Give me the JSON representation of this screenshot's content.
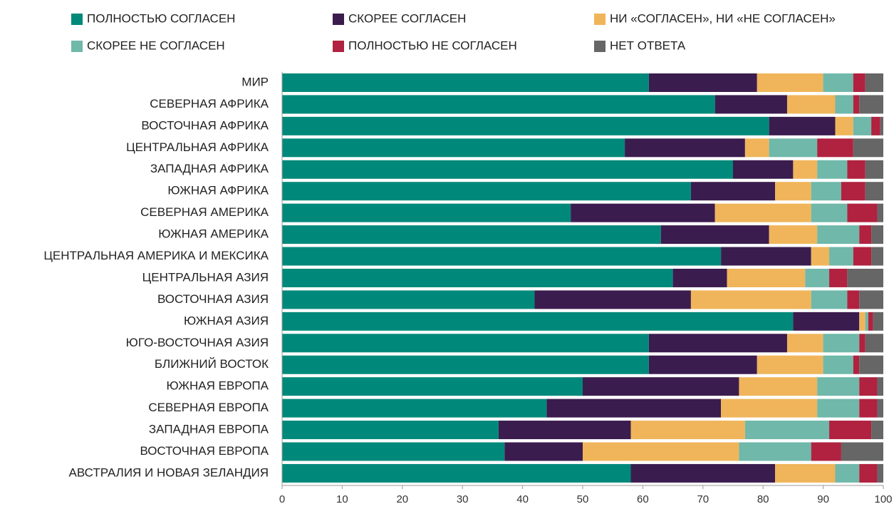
{
  "chart_data": {
    "type": "bar",
    "orientation": "horizontal",
    "stacked": true,
    "categories": [
      "МИР",
      "СЕВЕРНАЯ АФРИКА",
      "ВОСТОЧНАЯ АФРИКА",
      "ЦЕНТРАЛЬНАЯ АФРИКА",
      "ЗАПАДНАЯ АФРИКА",
      "ЮЖНАЯ АФРИКА",
      "СЕВЕРНАЯ АМЕРИКА",
      "ЮЖНАЯ АМЕРИКА",
      "ЦЕНТРАЛЬНАЯ АМЕРИКА И МЕКСИКА",
      "ЦЕНТРАЛЬНАЯ АЗИЯ",
      "ВОСТОЧНАЯ АЗИЯ",
      "ЮЖНАЯ АЗИЯ",
      "ЮГО-ВОСТОЧНАЯ АЗИЯ",
      "БЛИЖНИЙ ВОСТОК",
      "ЮЖНАЯ ЕВРОПА",
      "СЕВЕРНАЯ ЕВРОПА",
      "ЗАПАДНАЯ ЕВРОПА",
      "ВОСТОЧНАЯ ЕВРОПА",
      "АВСТРАЛИЯ И НОВАЯ ЗЕЛАНДИЯ"
    ],
    "series": [
      {
        "name": "ПОЛНОСТЬЮ СОГЛАСЕН",
        "color": "#00897a",
        "values": [
          61,
          72,
          81,
          57,
          75,
          68,
          48,
          63,
          73,
          65,
          42,
          85,
          61,
          61,
          50,
          44,
          36,
          37,
          58
        ]
      },
      {
        "name": "СКОРЕЕ СОГЛАСЕН",
        "color": "#3b1c4f",
        "values": [
          18,
          12,
          11,
          20,
          10,
          14,
          24,
          18,
          15,
          9,
          26,
          11,
          23,
          18,
          26,
          29,
          22,
          13,
          24
        ]
      },
      {
        "name": "НИ «СОГЛАСЕН», НИ «НЕ СОГЛАСЕН»",
        "color": "#f0b55a",
        "values": [
          11,
          8,
          3,
          4,
          4,
          6,
          16,
          8,
          3,
          13,
          20,
          1,
          6,
          11,
          13,
          16,
          19,
          26,
          10
        ]
      },
      {
        "name": "СКОРЕЕ НЕ СОГЛАСЕН",
        "color": "#6fb8aa",
        "values": [
          5,
          3,
          3,
          8,
          5,
          5,
          6,
          7,
          4,
          4,
          6,
          0.5,
          6,
          5,
          7,
          7,
          14,
          12,
          4
        ]
      },
      {
        "name": "ПОЛНОСТЬЮ НЕ СОГЛАСЕН",
        "color": "#b0223f",
        "values": [
          2,
          1,
          1.5,
          6,
          3,
          4,
          5,
          2,
          3,
          3,
          2,
          0.8,
          1,
          1,
          3,
          3,
          7,
          5,
          3
        ]
      },
      {
        "name": "НЕТ ОТВЕТА",
        "color": "#666666",
        "values": [
          3,
          4,
          0.5,
          5,
          3,
          3,
          1,
          2,
          2,
          6,
          4,
          1.7,
          3,
          4,
          1,
          1,
          2,
          7,
          1
        ]
      }
    ],
    "xlim": [
      0,
      100
    ],
    "xticks": [
      0,
      10,
      20,
      30,
      40,
      50,
      60,
      70,
      80,
      90,
      100
    ]
  }
}
